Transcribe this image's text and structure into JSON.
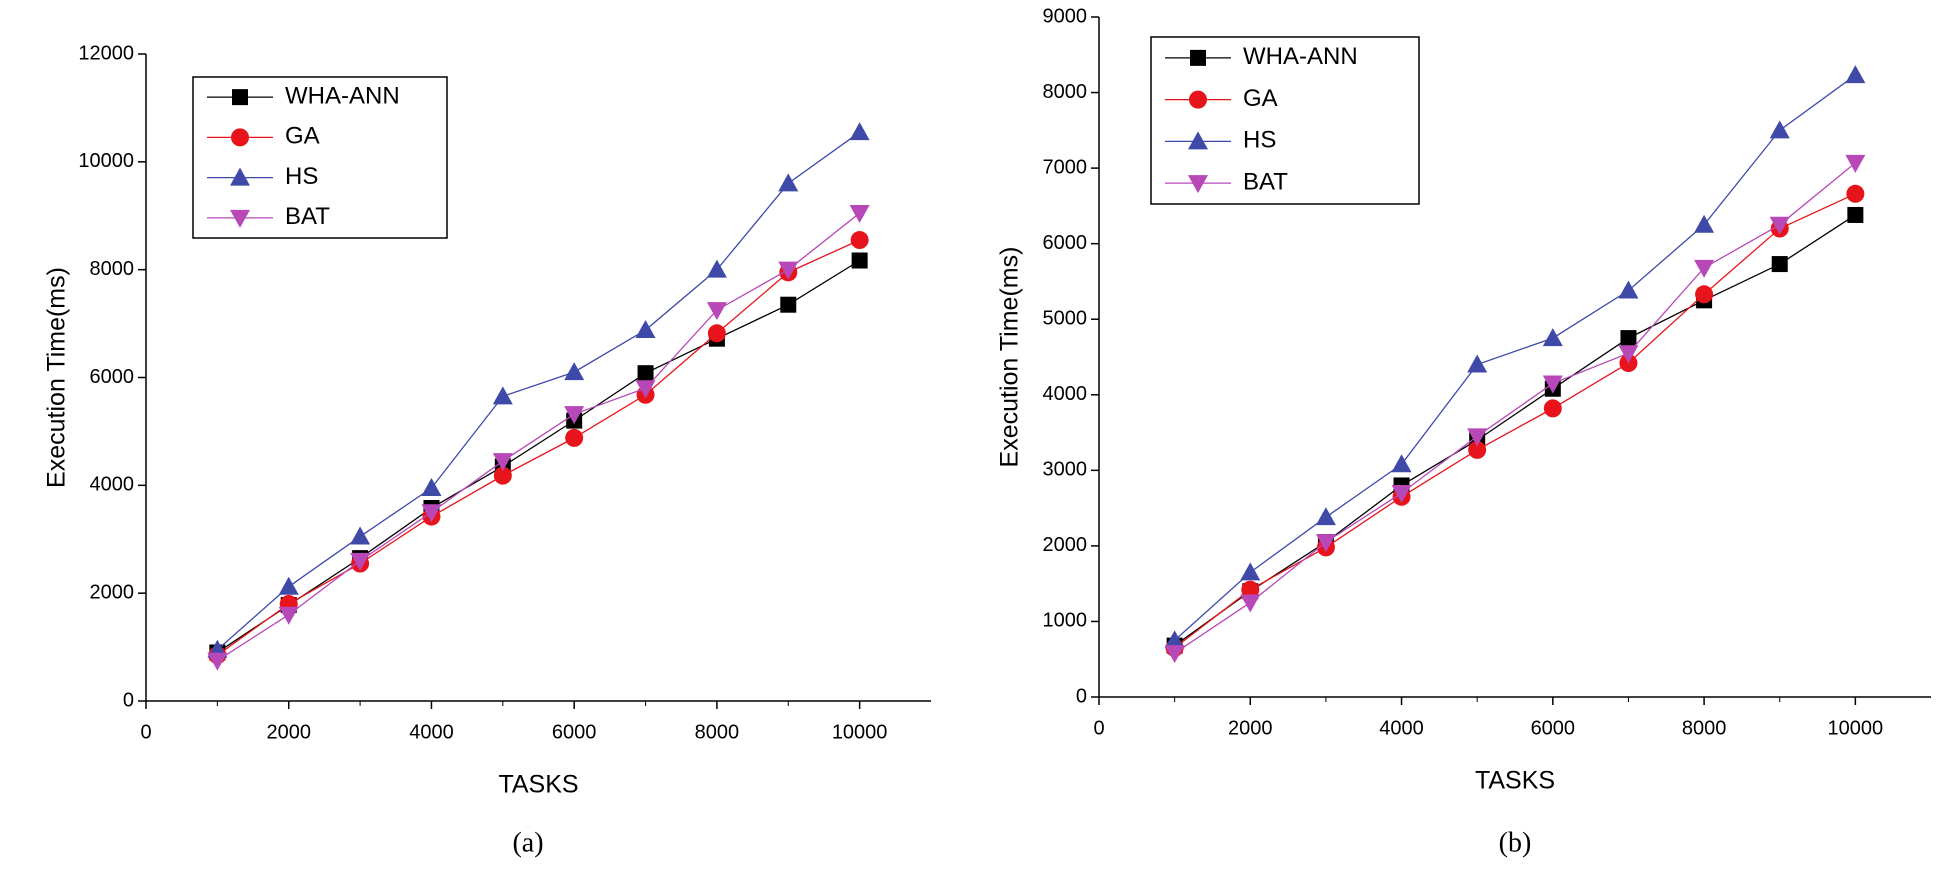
{
  "chart_data": [
    {
      "type": "line",
      "caption": "(a)",
      "x_label": "TASKS",
      "y_label": "Execution Time(ms)",
      "x": [
        1000,
        2000,
        3000,
        4000,
        5000,
        6000,
        7000,
        8000,
        9000,
        10000
      ],
      "xlim": [
        0,
        11000
      ],
      "xticks": [
        0,
        2000,
        4000,
        6000,
        8000,
        10000
      ],
      "ylim": [
        0,
        12000
      ],
      "yticks": [
        0,
        2000,
        4000,
        6000,
        8000,
        10000,
        12000
      ],
      "legend": "upper left",
      "series": [
        {
          "name": "WHA-ANN",
          "color": "#000000",
          "marker": "square",
          "values": [
            900,
            1780,
            2650,
            3580,
            4350,
            5200,
            6080,
            6720,
            7350,
            8170
          ]
        },
        {
          "name": "GA",
          "color": "#e8141b",
          "marker": "circle",
          "values": [
            850,
            1800,
            2550,
            3420,
            4180,
            4880,
            5680,
            6820,
            7950,
            8550
          ]
        },
        {
          "name": "HS",
          "color": "#3f4aa8",
          "marker": "triangle-up",
          "values": [
            950,
            2120,
            3050,
            3950,
            5650,
            6100,
            6880,
            8000,
            9600,
            10550
          ]
        },
        {
          "name": "BAT",
          "color": "#b848b8",
          "marker": "triangle-down",
          "values": [
            750,
            1600,
            2600,
            3500,
            4450,
            5320,
            5800,
            7250,
            8000,
            9050
          ]
        }
      ]
    },
    {
      "type": "line",
      "caption": "(b)",
      "x_label": "TASKS",
      "y_label": "Execution Time(ms)",
      "x": [
        1000,
        2000,
        3000,
        4000,
        5000,
        6000,
        7000,
        8000,
        9000,
        10000
      ],
      "xlim": [
        0,
        11000
      ],
      "xticks": [
        0,
        2000,
        4000,
        6000,
        8000,
        10000
      ],
      "ylim": [
        0,
        9000
      ],
      "yticks": [
        0,
        1000,
        2000,
        3000,
        4000,
        5000,
        6000,
        7000,
        8000,
        9000
      ],
      "legend": "upper left",
      "series": [
        {
          "name": "WHA-ANN",
          "color": "#000000",
          "marker": "square",
          "values": [
            680,
            1400,
            2050,
            2800,
            3400,
            4080,
            4750,
            5250,
            5730,
            6380
          ]
        },
        {
          "name": "GA",
          "color": "#e8141b",
          "marker": "circle",
          "values": [
            650,
            1420,
            1980,
            2650,
            3270,
            3820,
            4420,
            5330,
            6200,
            6660
          ]
        },
        {
          "name": "HS",
          "color": "#3f4aa8",
          "marker": "triangle-up",
          "values": [
            750,
            1650,
            2380,
            3080,
            4400,
            4750,
            5380,
            6250,
            7500,
            8230
          ]
        },
        {
          "name": "BAT",
          "color": "#b848b8",
          "marker": "triangle-down",
          "values": [
            580,
            1250,
            2050,
            2700,
            3450,
            4150,
            4550,
            5680,
            6250,
            7070
          ]
        }
      ]
    }
  ]
}
